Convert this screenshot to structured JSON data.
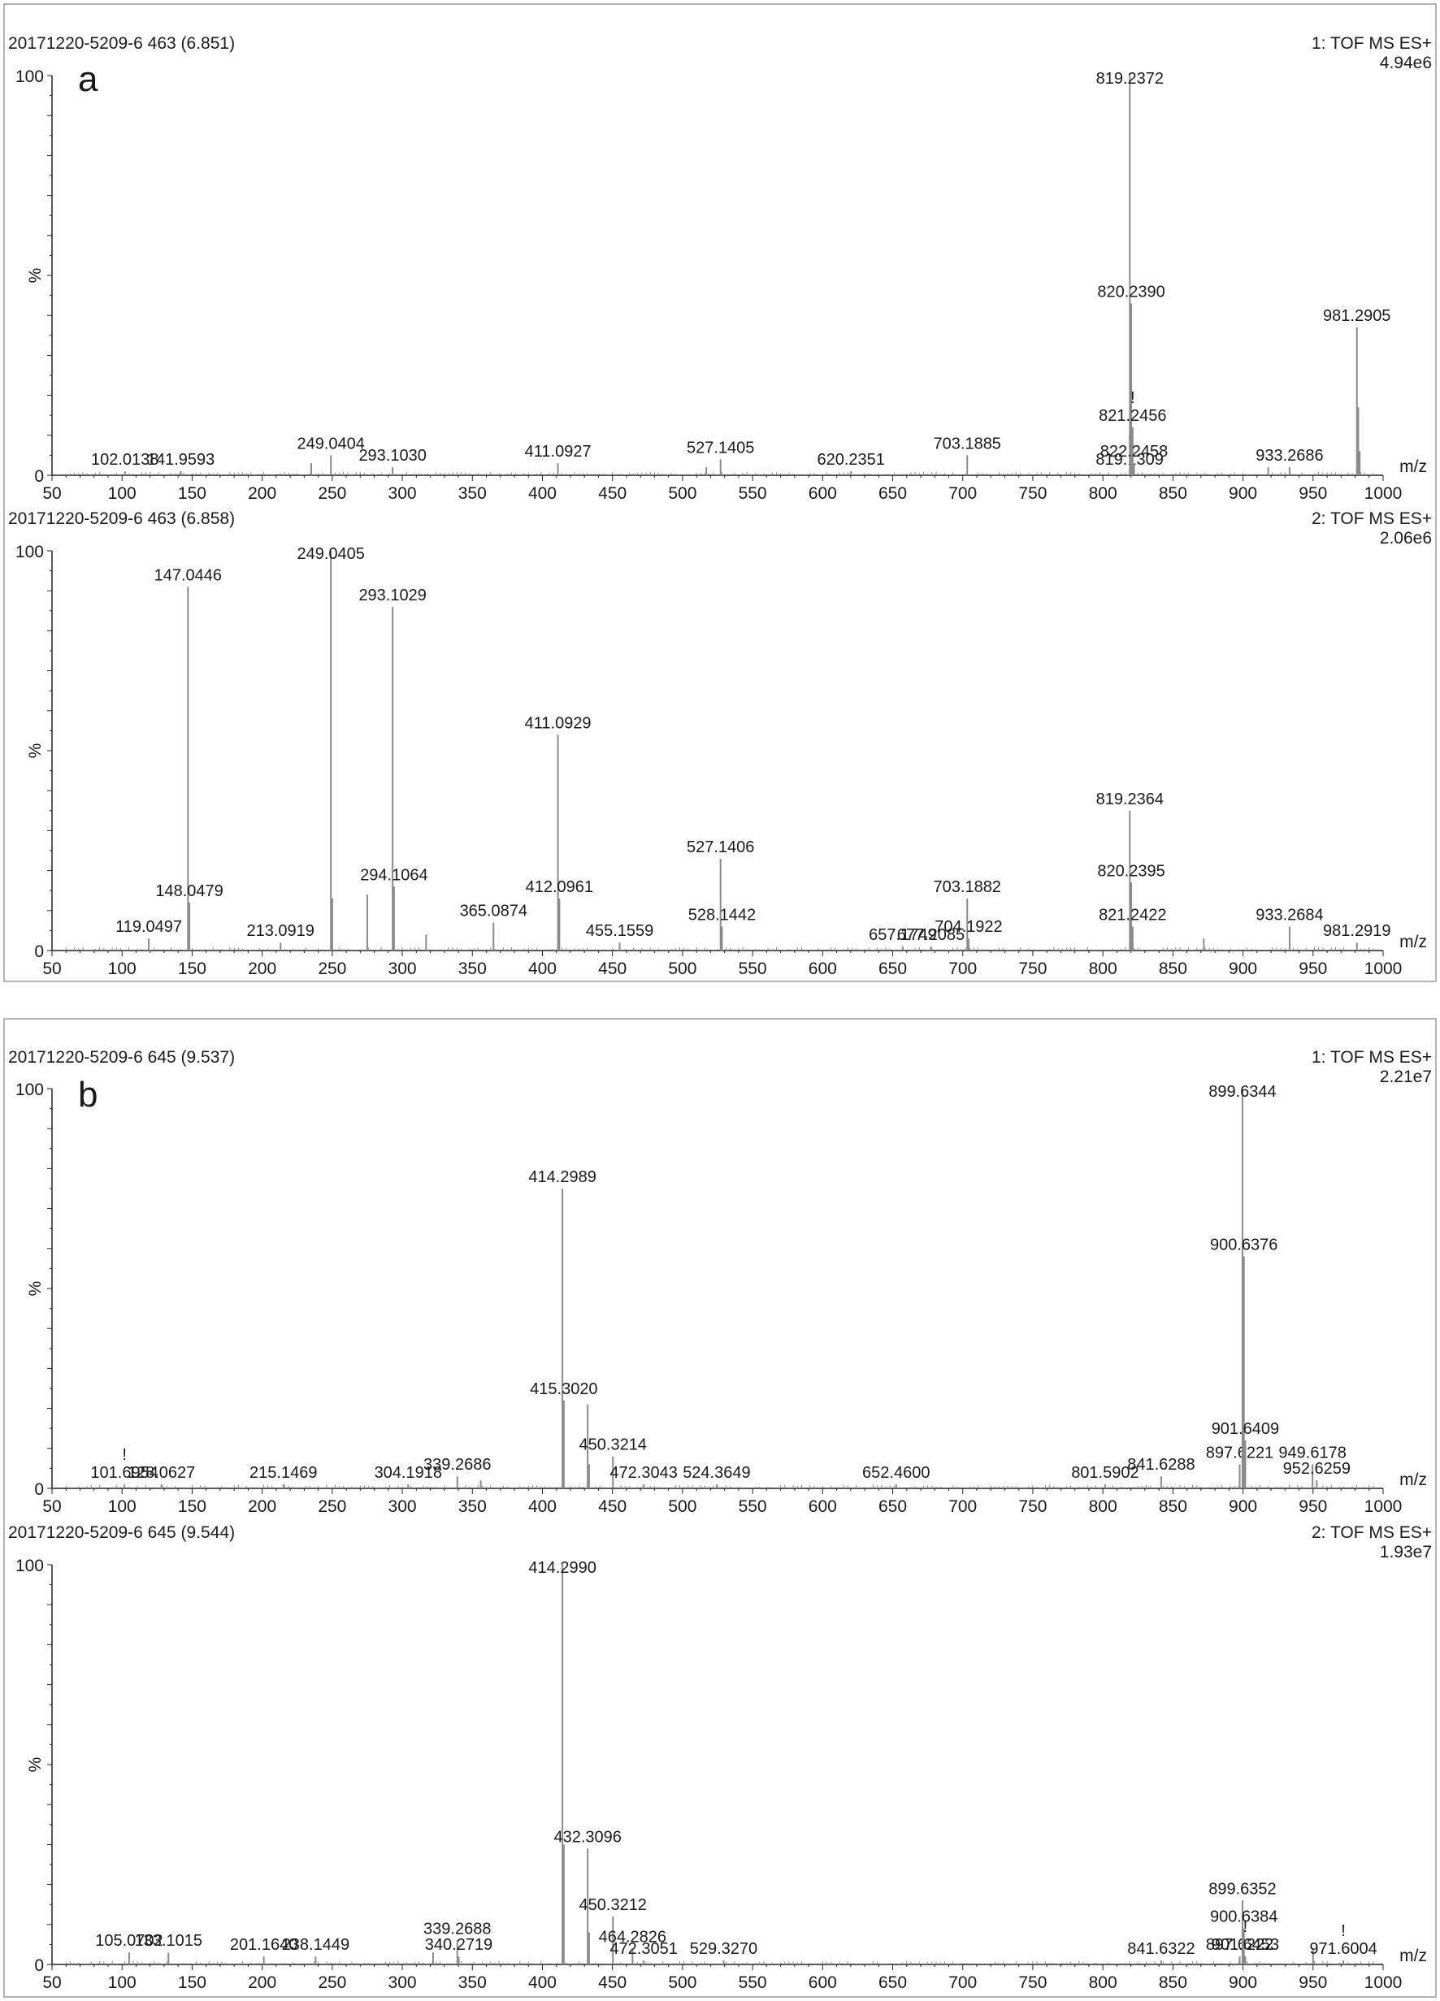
{
  "panels": [
    {
      "letter": "a",
      "spectra": [
        {
          "header": "20171220-5209-6 463 (6.851)",
          "mode": "1: TOF MS ES+",
          "intensity": "4.94e6",
          "y_top": "100",
          "y_zero": "0",
          "y_unit": "%",
          "x_unit": "m/z",
          "peaks": [
            {
              "mz": 102.0138,
              "rel": 1,
              "label": "102.0138"
            },
            {
              "mz": 141.9593,
              "rel": 1,
              "label": "141.9593"
            },
            {
              "mz": 235.0,
              "rel": 3
            },
            {
              "mz": 249.0404,
              "rel": 5,
              "label": "249.0404"
            },
            {
              "mz": 293.103,
              "rel": 2,
              "label": "293.1030"
            },
            {
              "mz": 411.0927,
              "rel": 3,
              "label": "411.0927"
            },
            {
              "mz": 517.0,
              "rel": 2
            },
            {
              "mz": 527.1405,
              "rel": 4,
              "label": "527.1405"
            },
            {
              "mz": 620.2351,
              "rel": 1,
              "label": "620.2351"
            },
            {
              "mz": 703.1885,
              "rel": 5,
              "label": "703.1885"
            },
            {
              "mz": 819.1309,
              "rel": 1,
              "label": "819.1309",
              "mark": "!"
            },
            {
              "mz": 819.2372,
              "rel": 100,
              "label": "819.2372"
            },
            {
              "mz": 820.239,
              "rel": 43,
              "label": "820.2390"
            },
            {
              "mz": 821.2456,
              "rel": 12,
              "label": "821.2456",
              "mark": "!"
            },
            {
              "mz": 822.2458,
              "rel": 3,
              "label": "822.2458"
            },
            {
              "mz": 918.0,
              "rel": 2
            },
            {
              "mz": 933.2686,
              "rel": 2,
              "label": "933.2686"
            },
            {
              "mz": 981.2905,
              "rel": 37,
              "label": "981.2905"
            },
            {
              "mz": 982.29,
              "rel": 17
            },
            {
              "mz": 983.29,
              "rel": 6
            }
          ]
        },
        {
          "header": "20171220-5209-6 463 (6.858)",
          "mode": "2: TOF MS ES+",
          "intensity": "2.06e6",
          "y_top": "100",
          "y_zero": "0",
          "y_unit": "%",
          "x_unit": "m/z",
          "peaks": [
            {
              "mz": 119.0497,
              "rel": 3,
              "label": "119.0497"
            },
            {
              "mz": 147.0446,
              "rel": 91,
              "label": "147.0446"
            },
            {
              "mz": 148.0479,
              "rel": 12,
              "label": "148.0479"
            },
            {
              "mz": 213.0919,
              "rel": 2,
              "label": "213.0919"
            },
            {
              "mz": 249.0405,
              "rel": 100,
              "label": "249.0405"
            },
            {
              "mz": 250.04,
              "rel": 13
            },
            {
              "mz": 275.0,
              "rel": 14
            },
            {
              "mz": 293.1029,
              "rel": 86,
              "label": "293.1029"
            },
            {
              "mz": 294.1064,
              "rel": 16,
              "label": "294.1064"
            },
            {
              "mz": 317.0,
              "rel": 4
            },
            {
              "mz": 365.0874,
              "rel": 7,
              "label": "365.0874"
            },
            {
              "mz": 411.0929,
              "rel": 54,
              "label": "411.0929"
            },
            {
              "mz": 412.0961,
              "rel": 13,
              "label": "412.0961"
            },
            {
              "mz": 455.1559,
              "rel": 2,
              "label": "455.1559"
            },
            {
              "mz": 527.1406,
              "rel": 23,
              "label": "527.1406"
            },
            {
              "mz": 528.1442,
              "rel": 6,
              "label": "528.1442"
            },
            {
              "mz": 657.1749,
              "rel": 1,
              "label": "657.1749"
            },
            {
              "mz": 677.2085,
              "rel": 1,
              "label": "677.2085"
            },
            {
              "mz": 703.1882,
              "rel": 13,
              "label": "703.1882"
            },
            {
              "mz": 704.1922,
              "rel": 3,
              "label": "704.1922"
            },
            {
              "mz": 819.2364,
              "rel": 35,
              "label": "819.2364"
            },
            {
              "mz": 820.2395,
              "rel": 17,
              "label": "820.2395"
            },
            {
              "mz": 821.2422,
              "rel": 6,
              "label": "821.2422"
            },
            {
              "mz": 872.0,
              "rel": 3
            },
            {
              "mz": 933.2684,
              "rel": 6,
              "label": "933.2684"
            },
            {
              "mz": 981.2919,
              "rel": 2,
              "label": "981.2919"
            }
          ]
        }
      ]
    },
    {
      "letter": "b",
      "spectra": [
        {
          "header": "20171220-5209-6 645 (9.537)",
          "mode": "1: TOF MS ES+",
          "intensity": "2.21e7",
          "y_top": "100",
          "y_zero": "0",
          "y_unit": "%",
          "x_unit": "m/z",
          "peaks": [
            {
              "mz": 101.6954,
              "rel": 1,
              "label": "101.6954",
              "mark": "!"
            },
            {
              "mz": 128.0627,
              "rel": 1,
              "label": "128.0627"
            },
            {
              "mz": 215.1469,
              "rel": 1,
              "label": "215.1469"
            },
            {
              "mz": 304.1918,
              "rel": 1,
              "label": "304.1918"
            },
            {
              "mz": 339.2686,
              "rel": 3,
              "label": "339.2686"
            },
            {
              "mz": 356.0,
              "rel": 2
            },
            {
              "mz": 414.2989,
              "rel": 75,
              "label": "414.2989"
            },
            {
              "mz": 415.302,
              "rel": 22,
              "label": "415.3020"
            },
            {
              "mz": 432.31,
              "rel": 21
            },
            {
              "mz": 433.31,
              "rel": 6
            },
            {
              "mz": 450.3214,
              "rel": 8,
              "label": "450.3214"
            },
            {
              "mz": 472.3043,
              "rel": 1,
              "label": "472.3043"
            },
            {
              "mz": 524.3649,
              "rel": 1,
              "label": "524.3649"
            },
            {
              "mz": 652.46,
              "rel": 1,
              "label": "652.4600"
            },
            {
              "mz": 801.5902,
              "rel": 1,
              "label": "801.5902"
            },
            {
              "mz": 841.6288,
              "rel": 3,
              "label": "841.6288"
            },
            {
              "mz": 897.6221,
              "rel": 6,
              "label": "897.6221"
            },
            {
              "mz": 899.6344,
              "rel": 100,
              "label": "899.6344"
            },
            {
              "mz": 900.6376,
              "rel": 58,
              "label": "900.6376"
            },
            {
              "mz": 901.6409,
              "rel": 12,
              "label": "901.6409"
            },
            {
              "mz": 949.6178,
              "rel": 6,
              "label": "949.6178"
            },
            {
              "mz": 952.6259,
              "rel": 2,
              "label": "952.6259"
            }
          ]
        },
        {
          "header": "20171220-5209-6 645 (9.544)",
          "mode": "2: TOF MS ES+",
          "intensity": "1.93e7",
          "y_top": "100",
          "y_zero": "0",
          "y_unit": "%",
          "x_unit": "m/z",
          "peaks": [
            {
              "mz": 105.0702,
              "rel": 3,
              "label": "105.0702"
            },
            {
              "mz": 133.1015,
              "rel": 3,
              "label": "133.1015"
            },
            {
              "mz": 201.164,
              "rel": 2,
              "label": "201.1640"
            },
            {
              "mz": 238.1449,
              "rel": 2,
              "label": "238.1449"
            },
            {
              "mz": 322.0,
              "rel": 3
            },
            {
              "mz": 339.2688,
              "rel": 6,
              "label": "339.2688"
            },
            {
              "mz": 340.2719,
              "rel": 2,
              "label": "340.2719"
            },
            {
              "mz": 414.299,
              "rel": 100,
              "label": "414.2990"
            },
            {
              "mz": 415.3,
              "rel": 30
            },
            {
              "mz": 432.3096,
              "rel": 29,
              "label": "432.3096"
            },
            {
              "mz": 433.31,
              "rel": 8
            },
            {
              "mz": 450.3212,
              "rel": 12,
              "label": "450.3212"
            },
            {
              "mz": 464.2826,
              "rel": 4,
              "label": "464.2826"
            },
            {
              "mz": 472.3051,
              "rel": 1,
              "label": "472.3051"
            },
            {
              "mz": 529.327,
              "rel": 1,
              "label": "529.3270"
            },
            {
              "mz": 841.6322,
              "rel": 1,
              "label": "841.6322"
            },
            {
              "mz": 897.6222,
              "rel": 2,
              "label": "897.6222"
            },
            {
              "mz": 899.6352,
              "rel": 16,
              "label": "899.6352"
            },
            {
              "mz": 900.6384,
              "rel": 9,
              "label": "900.6384"
            },
            {
              "mz": 901.6453,
              "rel": 2,
              "label": "901.6453",
              "mark": "!"
            },
            {
              "mz": 950.0,
              "rel": 4
            },
            {
              "mz": 971.6004,
              "rel": 1,
              "label": "971.6004",
              "mark": "!"
            }
          ]
        }
      ]
    }
  ],
  "chart_data": [
    {
      "type": "bar",
      "title": "20171220-5209-6 463 (6.851)",
      "xlabel": "m/z",
      "ylabel": "%",
      "xlim": [
        50,
        1000
      ],
      "ylim": [
        0,
        100
      ],
      "x": [
        102.0138,
        141.9593,
        249.0404,
        293.103,
        411.0927,
        527.1405,
        620.2351,
        703.1885,
        819.1309,
        819.2372,
        820.239,
        821.2456,
        822.2458,
        933.2686,
        981.2905
      ],
      "values": [
        1,
        1,
        5,
        2,
        3,
        4,
        1,
        5,
        1,
        100,
        43,
        12,
        3,
        2,
        37
      ]
    },
    {
      "type": "bar",
      "title": "20171220-5209-6 463 (6.858)",
      "xlabel": "m/z",
      "ylabel": "%",
      "xlim": [
        50,
        1000
      ],
      "ylim": [
        0,
        100
      ],
      "x": [
        119.0497,
        147.0446,
        148.0479,
        213.0919,
        249.0405,
        293.1029,
        294.1064,
        365.0874,
        411.0929,
        412.0961,
        455.1559,
        527.1406,
        528.1442,
        657.1749,
        677.2085,
        703.1882,
        704.1922,
        819.2364,
        820.2395,
        821.2422,
        933.2684,
        981.2919
      ],
      "values": [
        3,
        91,
        12,
        2,
        100,
        86,
        16,
        7,
        54,
        13,
        2,
        23,
        6,
        1,
        1,
        13,
        3,
        35,
        17,
        6,
        6,
        2
      ]
    },
    {
      "type": "bar",
      "title": "20171220-5209-6 645 (9.537)",
      "xlabel": "m/z",
      "ylabel": "%",
      "xlim": [
        50,
        1000
      ],
      "ylim": [
        0,
        100
      ],
      "x": [
        101.6954,
        128.0627,
        215.1469,
        304.1918,
        339.2686,
        414.2989,
        415.302,
        450.3214,
        472.3043,
        524.3649,
        652.46,
        801.5902,
        841.6288,
        897.6221,
        899.6344,
        900.6376,
        901.6409,
        949.6178,
        952.6259
      ],
      "values": [
        1,
        1,
        1,
        1,
        3,
        75,
        22,
        8,
        1,
        1,
        1,
        1,
        3,
        6,
        100,
        58,
        12,
        6,
        2
      ]
    },
    {
      "type": "bar",
      "title": "20171220-5209-6 645 (9.544)",
      "xlabel": "m/z",
      "ylabel": "%",
      "xlim": [
        50,
        1000
      ],
      "ylim": [
        0,
        100
      ],
      "x": [
        105.0702,
        133.1015,
        201.164,
        238.1449,
        339.2688,
        340.2719,
        414.299,
        432.3096,
        450.3212,
        464.2826,
        472.3051,
        529.327,
        841.6322,
        897.6222,
        899.6352,
        900.6384,
        901.6453,
        971.6004
      ],
      "values": [
        3,
        3,
        2,
        2,
        6,
        2,
        100,
        29,
        12,
        4,
        1,
        1,
        1,
        2,
        16,
        9,
        2,
        1
      ]
    }
  ],
  "x_ticks": [
    50,
    100,
    150,
    200,
    250,
    300,
    350,
    400,
    450,
    500,
    550,
    600,
    650,
    700,
    750,
    800,
    850,
    900,
    950,
    1000
  ],
  "colors": {
    "peak": "#8a8a8a",
    "axis": "#222222",
    "frame": "#9a9a9a",
    "text": "#1a1a1a"
  }
}
